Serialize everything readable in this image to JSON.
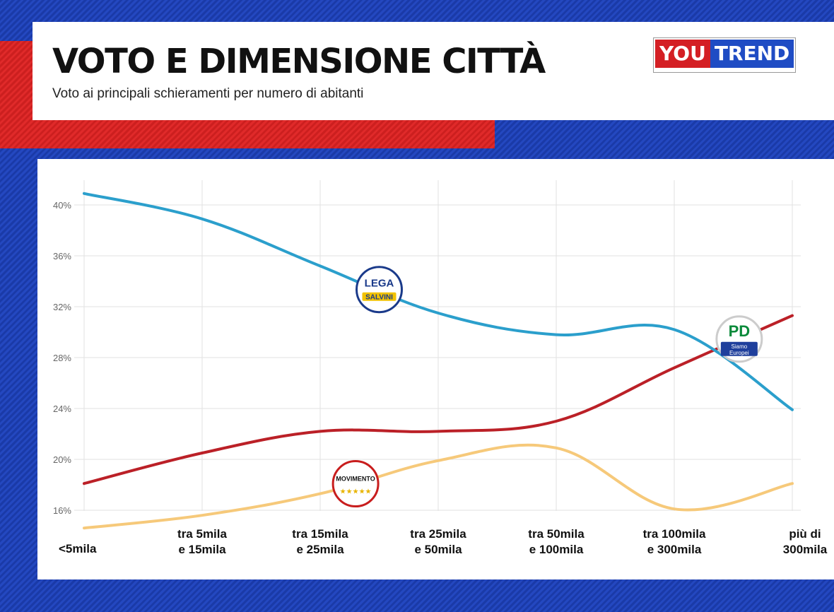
{
  "header": {
    "title": "VOTO E DIMENSIONE CITTÀ",
    "subtitle": "Voto ai principali schieramenti per numero di abitanti",
    "logo_left": "YOU",
    "logo_right": "TREND"
  },
  "colors": {
    "lega": "#2b9fcc",
    "pd": "#bb2027",
    "m5s": "#f6c97a",
    "grid": "#e2e2e2",
    "background_blue": "#1f40b4",
    "accent_red": "#d52525"
  },
  "chart_data": {
    "type": "line",
    "title": "VOTO E DIMENSIONE CITTÀ",
    "subtitle": "Voto ai principali schieramenti per numero di abitanti",
    "categories": [
      [
        "<5mila"
      ],
      [
        "tra 5mila",
        "e 15mila"
      ],
      [
        "tra 15mila",
        "e 25mila"
      ],
      [
        "tra 25mila",
        "e 50mila"
      ],
      [
        "tra 50mila",
        "e 100mila"
      ],
      [
        "tra 100mila",
        "e 300mila"
      ],
      [
        "più di",
        "300mila"
      ]
    ],
    "ylim": [
      14.5,
      41
    ],
    "yticks": [
      16,
      20,
      24,
      28,
      32,
      36,
      40
    ],
    "ytick_labels": [
      "16%",
      "20%",
      "24%",
      "28%",
      "32%",
      "36%",
      "40%"
    ],
    "grid": true,
    "series": [
      {
        "name": "Lega",
        "color": "#2b9fcc",
        "values": [
          40.9,
          38.9,
          35.2,
          31.5,
          29.8,
          30.2,
          23.9
        ],
        "logo": {
          "position": 2.5,
          "lines": [
            "LEGA",
            "SALVINI"
          ]
        }
      },
      {
        "name": "Partito Democratico",
        "color": "#bb2027",
        "values": [
          18.1,
          20.5,
          22.2,
          22.2,
          23.0,
          27.2,
          31.3
        ],
        "logo": {
          "position": 5.55,
          "lines": [
            "PD",
            "Siamo",
            "Europei"
          ]
        }
      },
      {
        "name": "MoVimento 5 Stelle",
        "color": "#f6c97a",
        "values": [
          14.6,
          15.6,
          17.3,
          19.9,
          20.9,
          16.1,
          18.1
        ],
        "logo": {
          "position": 2.3,
          "lines": [
            "MOVIMENTO",
            "★★★★★"
          ]
        }
      }
    ]
  }
}
